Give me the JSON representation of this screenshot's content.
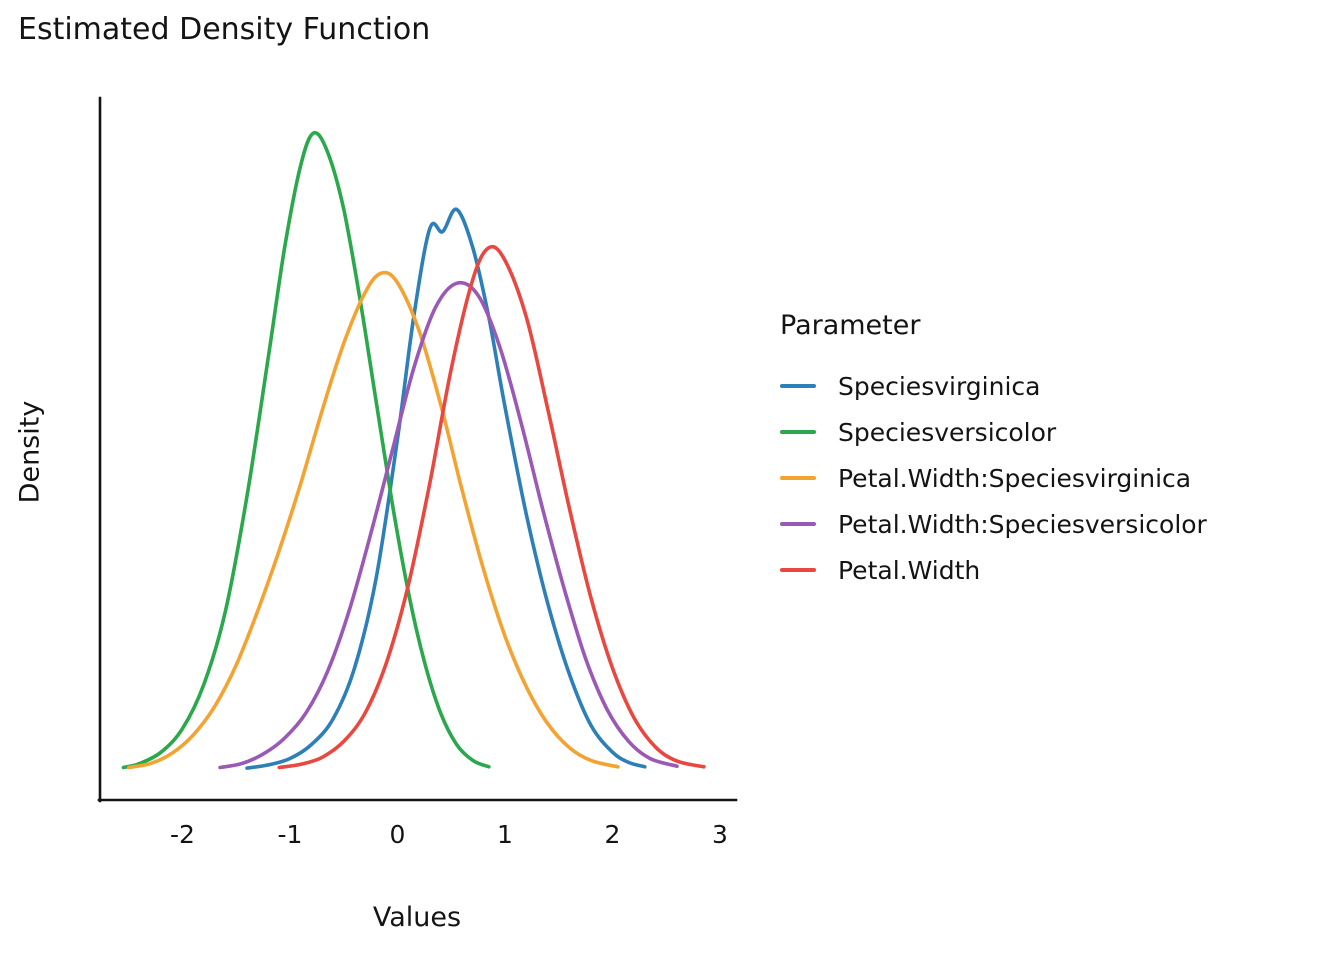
{
  "chart_data": {
    "type": "line",
    "subtype": "density",
    "title": "Estimated Density Function",
    "xlabel": "Values",
    "ylabel": "Density",
    "legend_title": "Parameter",
    "legend_position": "right",
    "grid": false,
    "xlim": [
      -2.8,
      3.1
    ],
    "ylim": [
      0,
      1.05
    ],
    "background_color": "#ffffff",
    "axis_color": "#141414",
    "xticks": [
      {
        "value": -2,
        "label": "-2"
      },
      {
        "value": -1,
        "label": "-1"
      },
      {
        "value": 0,
        "label": "0"
      },
      {
        "value": 1,
        "label": "1"
      },
      {
        "value": 2,
        "label": "2"
      },
      {
        "value": 3,
        "label": "3"
      }
    ],
    "series": [
      {
        "name": "Speciesvirginica",
        "color": "#2d7fb8",
        "points": [
          [
            -1.4,
            0.003
          ],
          [
            -1.2,
            0.008
          ],
          [
            -1.0,
            0.018
          ],
          [
            -0.8,
            0.04
          ],
          [
            -0.6,
            0.08
          ],
          [
            -0.4,
            0.16
          ],
          [
            -0.2,
            0.3
          ],
          [
            0.0,
            0.52
          ],
          [
            0.15,
            0.71
          ],
          [
            0.3,
            0.85
          ],
          [
            0.42,
            0.845
          ],
          [
            0.55,
            0.88
          ],
          [
            0.7,
            0.82
          ],
          [
            0.85,
            0.71
          ],
          [
            1.0,
            0.57
          ],
          [
            1.2,
            0.4
          ],
          [
            1.4,
            0.26
          ],
          [
            1.6,
            0.15
          ],
          [
            1.8,
            0.07
          ],
          [
            2.0,
            0.028
          ],
          [
            2.15,
            0.012
          ],
          [
            2.3,
            0.005
          ]
        ]
      },
      {
        "name": "Speciesversicolor",
        "color": "#2ba84c",
        "points": [
          [
            -2.55,
            0.004
          ],
          [
            -2.4,
            0.01
          ],
          [
            -2.2,
            0.028
          ],
          [
            -2.0,
            0.065
          ],
          [
            -1.8,
            0.135
          ],
          [
            -1.6,
            0.25
          ],
          [
            -1.4,
            0.43
          ],
          [
            -1.2,
            0.65
          ],
          [
            -1.05,
            0.82
          ],
          [
            -0.9,
            0.95
          ],
          [
            -0.78,
            1.0
          ],
          [
            -0.65,
            0.97
          ],
          [
            -0.5,
            0.88
          ],
          [
            -0.35,
            0.74
          ],
          [
            -0.2,
            0.58
          ],
          [
            -0.05,
            0.42
          ],
          [
            0.1,
            0.28
          ],
          [
            0.25,
            0.17
          ],
          [
            0.4,
            0.09
          ],
          [
            0.55,
            0.04
          ],
          [
            0.7,
            0.015
          ],
          [
            0.85,
            0.005
          ]
        ]
      },
      {
        "name": "Petal.Width:Speciesvirginica",
        "color": "#f3a332",
        "points": [
          [
            -2.5,
            0.004
          ],
          [
            -2.3,
            0.01
          ],
          [
            -2.1,
            0.026
          ],
          [
            -1.9,
            0.055
          ],
          [
            -1.7,
            0.1
          ],
          [
            -1.5,
            0.165
          ],
          [
            -1.3,
            0.25
          ],
          [
            -1.1,
            0.345
          ],
          [
            -0.9,
            0.45
          ],
          [
            -0.7,
            0.565
          ],
          [
            -0.5,
            0.67
          ],
          [
            -0.3,
            0.75
          ],
          [
            -0.15,
            0.78
          ],
          [
            0.0,
            0.765
          ],
          [
            0.2,
            0.69
          ],
          [
            0.4,
            0.575
          ],
          [
            0.6,
            0.44
          ],
          [
            0.8,
            0.315
          ],
          [
            1.0,
            0.21
          ],
          [
            1.2,
            0.13
          ],
          [
            1.4,
            0.072
          ],
          [
            1.6,
            0.035
          ],
          [
            1.8,
            0.015
          ],
          [
            2.05,
            0.005
          ]
        ]
      },
      {
        "name": "Petal.Width:Speciesversicolor",
        "color": "#9b59b6",
        "points": [
          [
            -1.65,
            0.004
          ],
          [
            -1.45,
            0.01
          ],
          [
            -1.25,
            0.025
          ],
          [
            -1.05,
            0.05
          ],
          [
            -0.85,
            0.09
          ],
          [
            -0.65,
            0.155
          ],
          [
            -0.45,
            0.25
          ],
          [
            -0.25,
            0.37
          ],
          [
            -0.05,
            0.5
          ],
          [
            0.15,
            0.63
          ],
          [
            0.35,
            0.725
          ],
          [
            0.55,
            0.764
          ],
          [
            0.75,
            0.745
          ],
          [
            0.95,
            0.665
          ],
          [
            1.15,
            0.545
          ],
          [
            1.35,
            0.41
          ],
          [
            1.55,
            0.285
          ],
          [
            1.75,
            0.175
          ],
          [
            1.95,
            0.095
          ],
          [
            2.15,
            0.045
          ],
          [
            2.35,
            0.018
          ],
          [
            2.6,
            0.006
          ]
        ]
      },
      {
        "name": "Petal.Width",
        "color": "#e8483f",
        "points": [
          [
            -1.1,
            0.004
          ],
          [
            -0.9,
            0.009
          ],
          [
            -0.7,
            0.02
          ],
          [
            -0.5,
            0.045
          ],
          [
            -0.3,
            0.09
          ],
          [
            -0.1,
            0.17
          ],
          [
            0.1,
            0.29
          ],
          [
            0.3,
            0.45
          ],
          [
            0.5,
            0.63
          ],
          [
            0.7,
            0.77
          ],
          [
            0.85,
            0.82
          ],
          [
            1.0,
            0.8
          ],
          [
            1.2,
            0.71
          ],
          [
            1.4,
            0.565
          ],
          [
            1.6,
            0.41
          ],
          [
            1.8,
            0.27
          ],
          [
            2.0,
            0.16
          ],
          [
            2.2,
            0.082
          ],
          [
            2.4,
            0.036
          ],
          [
            2.6,
            0.014
          ],
          [
            2.85,
            0.005
          ]
        ]
      }
    ]
  }
}
